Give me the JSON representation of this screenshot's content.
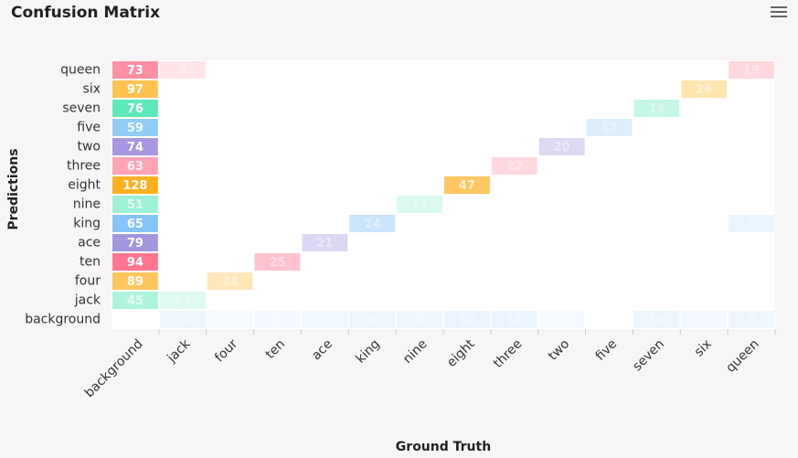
{
  "chart_data": {
    "type": "heatmap",
    "title": "Confusion Matrix",
    "x_label": "Ground Truth",
    "y_label": "Predictions",
    "x_categories": [
      "background",
      "jack",
      "four",
      "ten",
      "ace",
      "king",
      "nine",
      "eight",
      "three",
      "two",
      "five",
      "seven",
      "six",
      "queen"
    ],
    "y_categories": [
      "queen",
      "six",
      "seven",
      "five",
      "two",
      "three",
      "eight",
      "nine",
      "king",
      "ace",
      "ten",
      "four",
      "jack",
      "background"
    ],
    "row_colors": [
      "#ff8fa3",
      "#ffc24f",
      "#5de8b8",
      "#80c4f5",
      "#a897e0",
      "#ff9aae",
      "#ffb020",
      "#7dedc9",
      "#7fc0f5",
      "#a395e0",
      "#ff7590",
      "#ffc65c",
      "#86f0cc",
      "#b8dbf7"
    ],
    "values": [
      [
        73,
        9,
        null,
        null,
        null,
        null,
        null,
        null,
        null,
        null,
        null,
        null,
        null,
        19
      ],
      [
        97,
        null,
        null,
        null,
        null,
        null,
        null,
        null,
        null,
        null,
        null,
        null,
        26,
        null
      ],
      [
        76,
        null,
        null,
        null,
        null,
        null,
        null,
        null,
        null,
        null,
        null,
        19,
        null,
        null
      ],
      [
        59,
        null,
        null,
        null,
        null,
        null,
        null,
        null,
        null,
        null,
        12,
        null,
        null,
        null
      ],
      [
        74,
        null,
        null,
        null,
        null,
        null,
        null,
        null,
        null,
        20,
        null,
        null,
        null,
        null
      ],
      [
        63,
        null,
        null,
        null,
        null,
        null,
        null,
        null,
        22,
        null,
        null,
        null,
        null,
        null
      ],
      [
        128,
        null,
        null,
        null,
        null,
        null,
        null,
        47,
        null,
        null,
        null,
        null,
        null,
        null
      ],
      [
        51,
        null,
        null,
        null,
        null,
        null,
        13,
        null,
        null,
        null,
        null,
        null,
        null,
        null
      ],
      [
        65,
        null,
        null,
        null,
        null,
        24,
        null,
        null,
        null,
        null,
        null,
        null,
        null,
        3
      ],
      [
        79,
        null,
        null,
        null,
        21,
        null,
        null,
        null,
        null,
        null,
        null,
        null,
        null,
        null
      ],
      [
        94,
        null,
        null,
        25,
        null,
        null,
        null,
        null,
        null,
        null,
        null,
        null,
        null,
        null
      ],
      [
        89,
        null,
        24,
        null,
        null,
        null,
        null,
        null,
        null,
        null,
        null,
        null,
        null,
        null
      ],
      [
        45,
        13,
        null,
        null,
        null,
        null,
        null,
        null,
        null,
        null,
        null,
        null,
        null,
        null
      ],
      [
        null,
        10,
        2,
        4,
        6,
        8,
        8,
        12,
        12,
        1,
        null,
        10,
        5,
        8
      ]
    ]
  }
}
